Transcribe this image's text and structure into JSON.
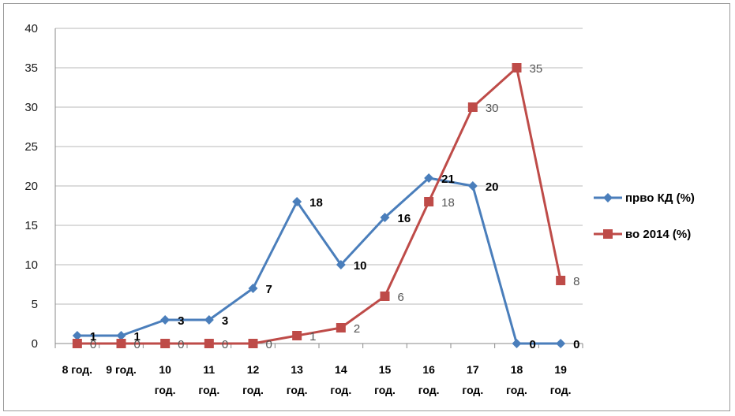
{
  "chart_data": {
    "type": "line",
    "categories": [
      [
        "8 год."
      ],
      [
        "9 год."
      ],
      [
        "10",
        "год."
      ],
      [
        "11",
        "год."
      ],
      [
        "12",
        "год."
      ],
      [
        "13",
        "год."
      ],
      [
        "14",
        "год."
      ],
      [
        "15",
        "год."
      ],
      [
        "16",
        "год."
      ],
      [
        "17",
        "год."
      ],
      [
        "18",
        "год."
      ],
      [
        "19",
        "год."
      ]
    ],
    "ylim": [
      0,
      40
    ],
    "yticks": [
      0,
      5,
      10,
      15,
      20,
      25,
      30,
      35,
      40
    ],
    "grid": true,
    "legend_position": "right",
    "series": [
      {
        "name": "прво КД (%)",
        "color": "#4a7ebb",
        "marker": "diamond",
        "values": [
          1,
          1,
          3,
          3,
          7,
          18,
          10,
          16,
          21,
          20,
          0,
          0
        ]
      },
      {
        "name": "во 2014 (%)",
        "color": "#be4b48",
        "marker": "square",
        "values": [
          0,
          0,
          0,
          0,
          0,
          1,
          2,
          6,
          18,
          30,
          35,
          8
        ]
      }
    ]
  }
}
